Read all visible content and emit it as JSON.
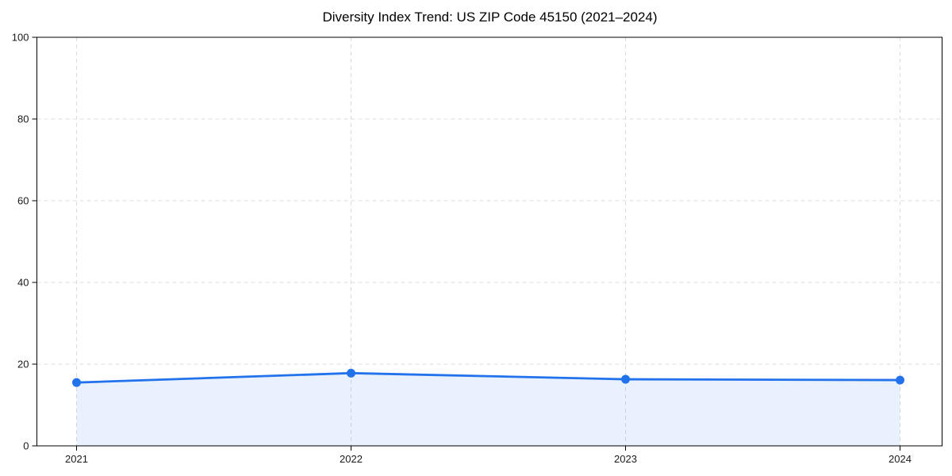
{
  "chart_data": {
    "type": "area",
    "title": "Diversity Index Trend: US ZIP Code 45150 (2021–2024)",
    "x": [
      "2021",
      "2022",
      "2023",
      "2024"
    ],
    "series": [
      {
        "name": "Diversity Index",
        "values": [
          15.5,
          17.8,
          16.3,
          16.1
        ]
      }
    ],
    "xlabel": "",
    "ylabel": "",
    "ylim": [
      0,
      100
    ],
    "yticks": [
      0,
      20,
      40,
      60,
      80,
      100
    ],
    "grid": true,
    "grid_style": "dashed",
    "legend_position": "none",
    "colors": {
      "line": "#2272eb",
      "marker": "#2272eb",
      "area_fill": "rgba(34,114,235,0.10)",
      "grid": "#dcdcdc",
      "spine": "#000000",
      "tick_label": "#1a1a1a",
      "title": "#000000",
      "background": "#ffffff"
    }
  }
}
